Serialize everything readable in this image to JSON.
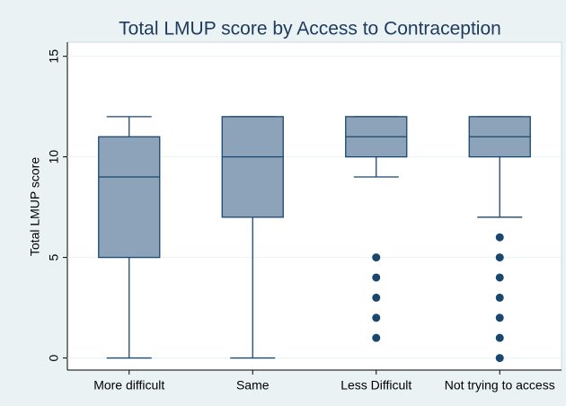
{
  "chart_data": {
    "type": "box",
    "title": "Total LMUP score by Access to Contraception",
    "y_label": "Total LMUP score",
    "categories": [
      "More difficult",
      "Same",
      "Less Difficult",
      "Not trying to access"
    ],
    "boxes": [
      {
        "min": 0,
        "q1": 5,
        "median": 9,
        "q3": 11,
        "max": 12,
        "outliers": []
      },
      {
        "min": 0,
        "q1": 7,
        "median": 10,
        "q3": 12,
        "max": 12,
        "outliers": []
      },
      {
        "min": 9,
        "q1": 10,
        "median": 11,
        "q3": 12,
        "max": 12,
        "outliers": [
          1,
          2,
          3,
          4,
          5
        ]
      },
      {
        "min": 7,
        "q1": 10,
        "median": 11,
        "q3": 12,
        "max": 12,
        "outliers": [
          0,
          1,
          2,
          3,
          4,
          5,
          6
        ]
      }
    ],
    "color": "#8ca3b9",
    "line_color": "#1a476f",
    "ylim": [
      -0.6,
      15.7
    ],
    "yticks": [
      0,
      5,
      10,
      15
    ],
    "grid": true
  }
}
